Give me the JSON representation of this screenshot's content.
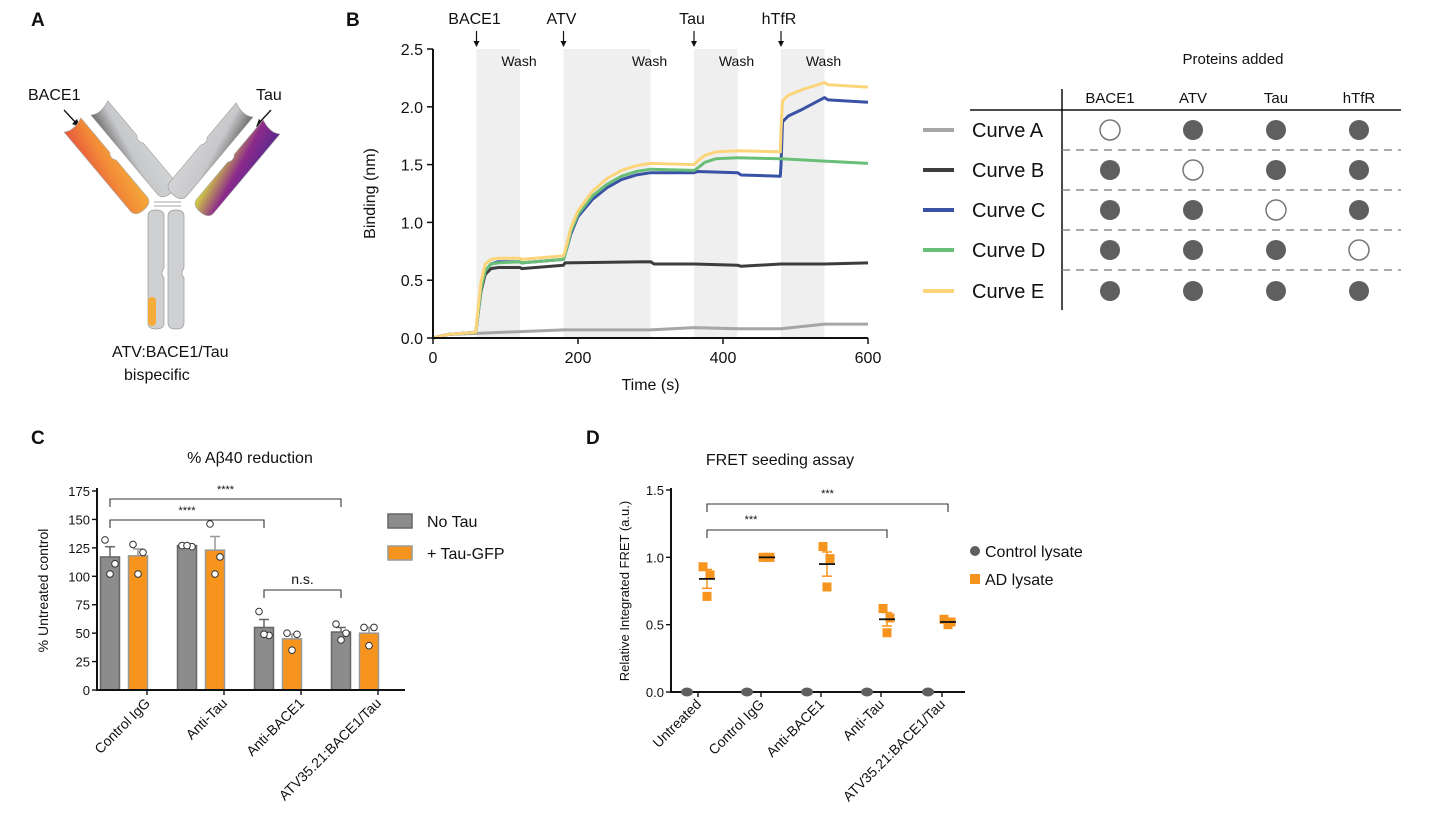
{
  "panels": {
    "A": {
      "letter": "A",
      "label_left": "BACE1",
      "label_right": "Tau",
      "caption_line1": "ATV:BACE1/Tau",
      "caption_line2": "bispecific",
      "colors": {
        "bace1_arm_top": "#e8573a",
        "bace1_arm_bottom": "#f4a93a",
        "tau_arm_top": "#5a2a8c",
        "tau_arm_mid": "#8b2a8c",
        "tau_arm_bottom": "#d7d83a",
        "constant": "#cfd0d2",
        "atv_patch": "#f4a93a"
      }
    },
    "B": {
      "letter": "B"
    },
    "C": {
      "letter": "C"
    },
    "D": {
      "letter": "D"
    }
  },
  "chart_data": [
    {
      "id": "B",
      "type": "line",
      "title": "",
      "xlabel": "Time (s)",
      "ylabel": "Binding (nm)",
      "xlim": [
        0,
        600
      ],
      "ylim": [
        0,
        2.5
      ],
      "xticks": [
        0,
        200,
        400,
        600
      ],
      "yticks": [
        "0.0",
        "0.5",
        "1.0",
        "1.5",
        "2.0",
        "2.5"
      ],
      "association_steps": [
        {
          "label": "BACE1",
          "start": 60,
          "end": 120
        },
        {
          "label": "ATV",
          "start": 180,
          "end": 300
        },
        {
          "label": "Tau",
          "start": 360,
          "end": 420
        },
        {
          "label": "hTfR",
          "start": 480,
          "end": 540
        }
      ],
      "wash_label": "Wash",
      "wash_label_positions": [
        120,
        300,
        420,
        540
      ],
      "series": [
        {
          "name": "Curve A",
          "color": "#a6a6a6",
          "x": [
            0,
            20,
            60,
            120,
            180,
            300,
            360,
            420,
            480,
            540,
            600
          ],
          "y": [
            0.0,
            0.03,
            0.04,
            0.055,
            0.07,
            0.07,
            0.09,
            0.08,
            0.08,
            0.12,
            0.12
          ]
        },
        {
          "name": "Curve B",
          "color": "#3d3d3d",
          "x": [
            0,
            20,
            59,
            61,
            66,
            72,
            80,
            90,
            120,
            122,
            180,
            182,
            300,
            305,
            360,
            420,
            425,
            480,
            540,
            600
          ],
          "y": [
            0.0,
            0.03,
            0.05,
            0.15,
            0.4,
            0.55,
            0.6,
            0.61,
            0.61,
            0.6,
            0.63,
            0.65,
            0.66,
            0.64,
            0.64,
            0.63,
            0.62,
            0.64,
            0.64,
            0.65
          ]
        },
        {
          "name": "Curve C",
          "color": "#3a52a5",
          "x": [
            0,
            20,
            59,
            61,
            66,
            72,
            80,
            90,
            120,
            122,
            180,
            182,
            190,
            200,
            220,
            240,
            260,
            280,
            300,
            360,
            365,
            420,
            425,
            479,
            480,
            482,
            490,
            510,
            540,
            545,
            600
          ],
          "y": [
            0.0,
            0.03,
            0.05,
            0.15,
            0.42,
            0.58,
            0.64,
            0.66,
            0.66,
            0.65,
            0.68,
            0.72,
            0.9,
            1.05,
            1.2,
            1.3,
            1.37,
            1.41,
            1.43,
            1.43,
            1.44,
            1.43,
            1.41,
            1.4,
            1.5,
            1.87,
            1.92,
            1.98,
            2.08,
            2.06,
            2.04
          ]
        },
        {
          "name": "Curve D",
          "color": "#6abf78",
          "x": [
            0,
            20,
            59,
            61,
            66,
            72,
            80,
            90,
            120,
            122,
            180,
            182,
            190,
            200,
            220,
            240,
            260,
            280,
            300,
            360,
            365,
            375,
            390,
            420,
            480,
            540,
            600
          ],
          "y": [
            0.0,
            0.03,
            0.05,
            0.15,
            0.42,
            0.58,
            0.64,
            0.65,
            0.66,
            0.65,
            0.68,
            0.72,
            0.92,
            1.07,
            1.23,
            1.33,
            1.4,
            1.44,
            1.46,
            1.45,
            1.47,
            1.52,
            1.55,
            1.56,
            1.55,
            1.53,
            1.51
          ]
        },
        {
          "name": "Curve E",
          "color": "#fcd57a",
          "x": [
            0,
            20,
            59,
            61,
            66,
            72,
            80,
            90,
            120,
            122,
            180,
            182,
            190,
            200,
            220,
            240,
            260,
            280,
            300,
            360,
            365,
            375,
            390,
            420,
            479,
            480,
            482,
            490,
            510,
            540,
            545,
            600
          ],
          "y": [
            0.0,
            0.03,
            0.05,
            0.18,
            0.48,
            0.64,
            0.68,
            0.69,
            0.69,
            0.68,
            0.71,
            0.75,
            0.95,
            1.1,
            1.27,
            1.38,
            1.45,
            1.49,
            1.51,
            1.5,
            1.53,
            1.58,
            1.61,
            1.62,
            1.61,
            1.8,
            2.05,
            2.1,
            2.15,
            2.21,
            2.19,
            2.17
          ]
        }
      ]
    },
    {
      "id": "B-table",
      "type": "table",
      "title": "Proteins added",
      "columns": [
        "BACE1",
        "ATV",
        "Tau",
        "hTfR"
      ],
      "rows": [
        {
          "curve": "Curve A",
          "color": "#a6a6a6",
          "added": [
            false,
            true,
            true,
            true
          ]
        },
        {
          "curve": "Curve B",
          "color": "#3d3d3d",
          "added": [
            true,
            false,
            true,
            true
          ]
        },
        {
          "curve": "Curve C",
          "color": "#3a52a5",
          "added": [
            true,
            true,
            false,
            true
          ]
        },
        {
          "curve": "Curve D",
          "color": "#6abf78",
          "added": [
            true,
            true,
            true,
            false
          ]
        },
        {
          "curve": "Curve E",
          "color": "#fcd57a",
          "added": [
            true,
            true,
            true,
            true
          ]
        }
      ],
      "filled_color": "#5f5f5f"
    },
    {
      "id": "C",
      "type": "bar",
      "title": "% Aβ40 reduction",
      "xlabel": "",
      "ylabel": "% Untreated control",
      "ylim": [
        0,
        175
      ],
      "yticks": [
        0,
        25,
        50,
        75,
        100,
        125,
        150,
        175
      ],
      "categories": [
        "Control IgG",
        "Anti-Tau",
        "Anti-BACE1",
        "ATV35.21:BACE1/Tau"
      ],
      "legend_position": "right",
      "series": [
        {
          "name": "No Tau",
          "color": "#8c8c8c",
          "edge": "#666666",
          "values": [
            117,
            127,
            55,
            51
          ],
          "sem": [
            9,
            1,
            7,
            4
          ],
          "points": [
            [
              132,
              111,
              102
            ],
            [
              127,
              126,
              127
            ],
            [
              69,
              48,
              49
            ],
            [
              58,
              50,
              44
            ]
          ]
        },
        {
          "name": "+ Tau-GFP",
          "color": "#f7941d",
          "edge": "#999999",
          "values": [
            118,
            123,
            45,
            50
          ],
          "sem": [
            6,
            12,
            4,
            5
          ],
          "points": [
            [
              128,
              121,
              102
            ],
            [
              146,
              117,
              102
            ],
            [
              50,
              49,
              35
            ],
            [
              55,
              55,
              39
            ]
          ]
        }
      ],
      "significance": [
        {
          "from": 0,
          "to": 3,
          "label": "****"
        },
        {
          "from": 0,
          "to": 2,
          "label": "****"
        },
        {
          "from": 2,
          "to": 3,
          "label": "n.s."
        }
      ]
    },
    {
      "id": "D",
      "type": "scatter",
      "title": "FRET seeding assay",
      "xlabel": "",
      "ylabel": "Relative Integrated FRET (a.u.)",
      "ylim": [
        0,
        1.5
      ],
      "yticks": [
        "0.0",
        "0.5",
        "1.0",
        "1.5"
      ],
      "categories": [
        "Untreated",
        "Control IgG",
        "Anti-BACE1",
        "Anti-Tau",
        "ATV35.21:BACE1/Tau"
      ],
      "legend_position": "right",
      "series": [
        {
          "name": "Control lysate",
          "marker": "circle",
          "color": "#5f5f5f",
          "values": [
            0,
            0,
            0,
            0,
            0
          ]
        },
        {
          "name": "AD lysate",
          "marker": "square",
          "color": "#f7941d",
          "means": [
            0.84,
            1.0,
            0.95,
            0.54,
            0.52
          ],
          "sem": [
            0.07,
            0.0,
            0.09,
            0.05,
            0.01
          ],
          "points": [
            [
              0.93,
              0.87,
              0.71
            ],
            [
              1.0,
              1.0,
              1.0
            ],
            [
              1.08,
              0.99,
              0.78
            ],
            [
              0.62,
              0.55,
              0.44
            ],
            [
              0.54,
              0.52,
              0.5
            ]
          ]
        }
      ],
      "significance": [
        {
          "from": 0,
          "to": 4,
          "label": "***"
        },
        {
          "from": 0,
          "to": 3,
          "label": "***"
        }
      ]
    }
  ]
}
